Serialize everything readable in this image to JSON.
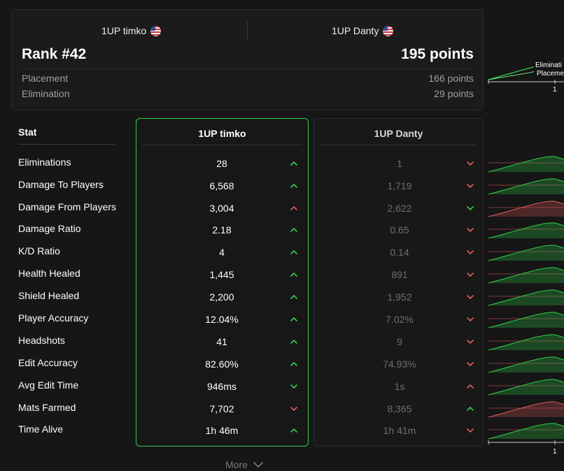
{
  "header": {
    "player1_name": "1UP timko",
    "player2_name": "1UP Danty",
    "player1_flag": "us-flag-icon",
    "player2_flag": "us-flag-icon",
    "rank": "Rank #42",
    "total_points": "195 points",
    "breakdown": [
      {
        "label": "Placement",
        "value": "166 points"
      },
      {
        "label": "Elimination",
        "value": "29 points"
      }
    ]
  },
  "table": {
    "stat_header": "Stat",
    "player1_header": "1UP timko",
    "player2_header": "1UP Danty",
    "rows": [
      {
        "stat": "Eliminations",
        "p1": "28",
        "p1_trend": "up",
        "p2": "1",
        "p2_trend": "down"
      },
      {
        "stat": "Damage To Players",
        "p1": "6,568",
        "p1_trend": "up",
        "p2": "1,719",
        "p2_trend": "down"
      },
      {
        "stat": "Damage From Players",
        "p1": "3,004",
        "p1_trend": "up-bad",
        "p2": "2,622",
        "p2_trend": "down-good"
      },
      {
        "stat": "Damage Ratio",
        "p1": "2.18",
        "p1_trend": "up",
        "p2": "0.65",
        "p2_trend": "down"
      },
      {
        "stat": "K/D Ratio",
        "p1": "4",
        "p1_trend": "up",
        "p2": "0.14",
        "p2_trend": "down"
      },
      {
        "stat": "Health Healed",
        "p1": "1,445",
        "p1_trend": "up",
        "p2": "891",
        "p2_trend": "down"
      },
      {
        "stat": "Shield Healed",
        "p1": "2,200",
        "p1_trend": "up",
        "p2": "1,952",
        "p2_trend": "down"
      },
      {
        "stat": "Player Accuracy",
        "p1": "12.04%",
        "p1_trend": "up",
        "p2": "7.02%",
        "p2_trend": "down"
      },
      {
        "stat": "Headshots",
        "p1": "41",
        "p1_trend": "up",
        "p2": "9",
        "p2_trend": "down"
      },
      {
        "stat": "Edit Accuracy",
        "p1": "82.60%",
        "p1_trend": "up",
        "p2": "74.93%",
        "p2_trend": "down"
      },
      {
        "stat": "Avg Edit Time",
        "p1": "946ms",
        "p1_trend": "down-good",
        "p2": "1s",
        "p2_trend": "up-bad"
      },
      {
        "stat": "Mats Farmed",
        "p1": "7,702",
        "p1_trend": "down",
        "p2": "8,365",
        "p2_trend": "up"
      },
      {
        "stat": "Time Alive",
        "p1": "1h 46m",
        "p1_trend": "up",
        "p2": "1h 41m",
        "p2_trend": "down"
      }
    ]
  },
  "more_label": "More",
  "side_chart": {
    "top_labels": [
      "Eliminati",
      "Placeme"
    ],
    "axis_label": "1"
  },
  "colors": {
    "good": "#2fd04a",
    "bad": "#e05a5a",
    "accent_border": "#2fd04a"
  }
}
